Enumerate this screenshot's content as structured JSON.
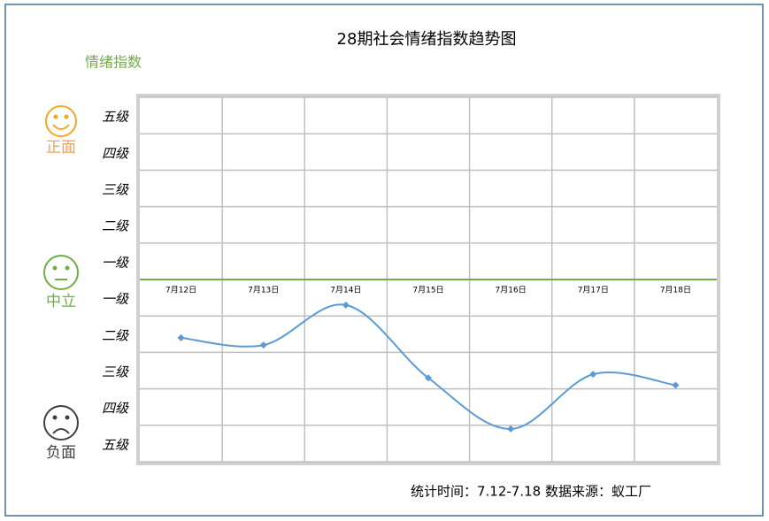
{
  "chart_data": {
    "type": "line",
    "title": "28期社会情绪指数趋势图",
    "y_axis_label": "情绪指数",
    "sentiment_labels": {
      "positive": "正面",
      "neutral": "中立",
      "negative": "负面"
    },
    "footer": "统计时间：7.12-7.18  数据来源：蚁工厂",
    "categories": [
      "7月12日",
      "7月13日",
      "7月14日",
      "7月15日",
      "7月16日",
      "7月17日",
      "7月18日"
    ],
    "series": [
      {
        "name": "情绪指数",
        "color": "#5b9bd5",
        "values": [
          -1.6,
          -1.8,
          -0.7,
          -2.7,
          -4.1,
          -2.6,
          -2.9
        ]
      }
    ],
    "ylim": [
      -5,
      5
    ],
    "yticks": [
      {
        "value": 4.5,
        "label": "五级"
      },
      {
        "value": 3.5,
        "label": "四级"
      },
      {
        "value": 2.5,
        "label": "三级"
      },
      {
        "value": 1.5,
        "label": "二级"
      },
      {
        "value": 0.5,
        "label": "一级"
      },
      {
        "value": -0.5,
        "label": "一级"
      },
      {
        "value": -1.5,
        "label": "二级"
      },
      {
        "value": -2.5,
        "label": "三级"
      },
      {
        "value": -3.5,
        "label": "四级"
      },
      {
        "value": -4.5,
        "label": "五级"
      }
    ],
    "grid": true,
    "smooth": true,
    "zero_line_color": "#70ad47"
  }
}
